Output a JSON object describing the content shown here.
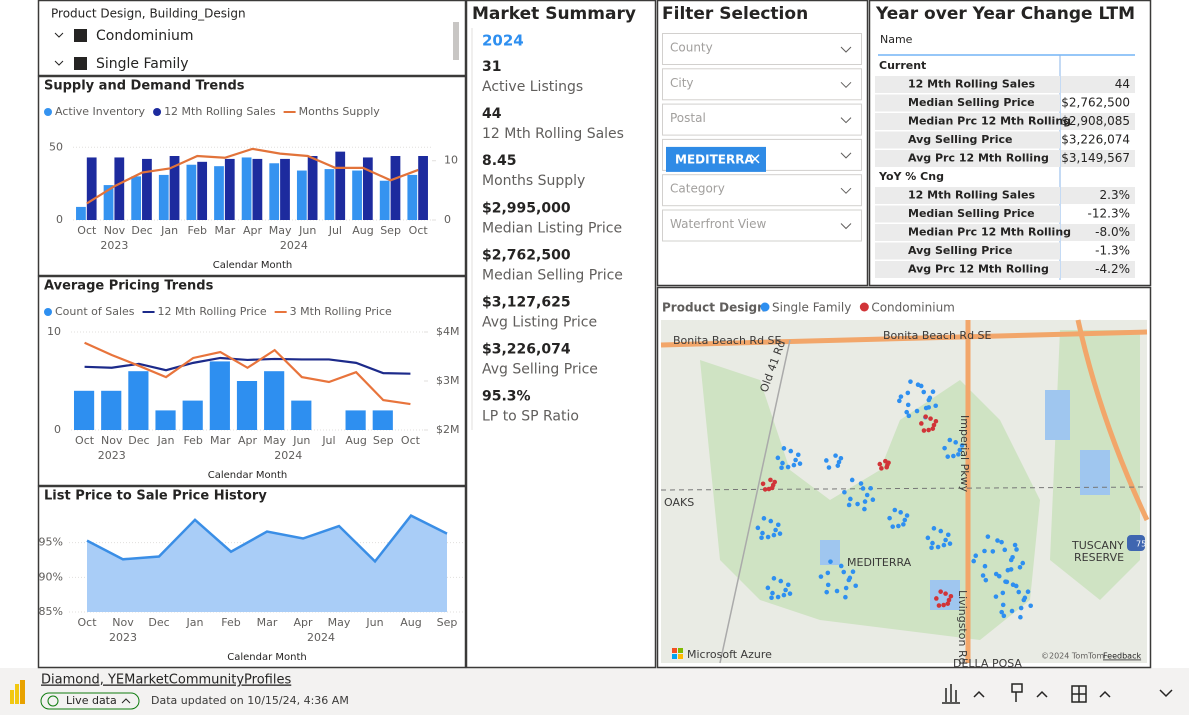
{
  "slicer": {
    "title": "Product Design, Building_Design",
    "items": [
      "Condominium",
      "Single Family"
    ]
  },
  "supply_chart": {
    "type": "combo",
    "title": "Supply and Demand Trends",
    "x_label": "Calendar Month",
    "year_labels": [
      "2023",
      "2024"
    ],
    "categories": [
      "Oct",
      "Nov",
      "Dec",
      "Jan",
      "Feb",
      "Mar",
      "Apr",
      "May",
      "Jun",
      "Jul",
      "Aug",
      "Sep",
      "Oct"
    ],
    "series": [
      {
        "name": "Active Inventory",
        "type": "bar",
        "color": "#3593f0",
        "values": [
          9,
          24,
          30,
          31,
          38,
          37,
          43,
          39,
          34,
          35,
          34,
          27,
          31
        ]
      },
      {
        "name": "12 Mth Rolling Sales",
        "type": "bar",
        "color": "#1d2b9e",
        "values": [
          43,
          43,
          42,
          44,
          40,
          42,
          42,
          42,
          44,
          47,
          43,
          44,
          44
        ]
      },
      {
        "name": "Months Supply",
        "type": "line",
        "axis": "y2",
        "color": "#e2733a",
        "values": [
          2.8,
          5.7,
          8,
          8.7,
          10.8,
          10.5,
          12,
          11.2,
          10.8,
          8.8,
          8.8,
          6.7,
          8.45
        ]
      }
    ],
    "ylim": [
      0,
      55
    ],
    "yticks": [
      0,
      50
    ],
    "y2lim": [
      0,
      13.5
    ],
    "y2ticks": [
      0,
      10
    ],
    "grid": true
  },
  "pricing_chart": {
    "type": "combo",
    "title": "Average Pricing Trends",
    "x_label": "Calendar Month",
    "year_labels": [
      "2023",
      "2024"
    ],
    "categories": [
      "Oct",
      "Nov",
      "Dec",
      "Jan",
      "Feb",
      "Mar",
      "Apr",
      "May",
      "Jun",
      "Jul",
      "Aug",
      "Sep",
      "Oct"
    ],
    "series": [
      {
        "name": "Count of Sales",
        "type": "bar",
        "color": "#2e8ff0",
        "values": [
          4,
          4,
          6,
          2,
          3,
          7,
          5,
          6,
          3,
          null,
          2,
          2,
          null
        ]
      },
      {
        "name": "12 Mth Rolling Price",
        "type": "line",
        "axis": "y2",
        "color": "#1c2a8a",
        "values": [
          3290000,
          3270000,
          3350000,
          3220000,
          3370000,
          3470000,
          3430000,
          3450000,
          3440000,
          3440000,
          3370000,
          3160000,
          3149567
        ]
      },
      {
        "name": "3 Mth Rolling Price",
        "type": "line",
        "axis": "y2",
        "color": "#e8743c",
        "values": [
          3780000,
          3530000,
          3310000,
          3080000,
          3470000,
          3590000,
          3270000,
          3630000,
          3080000,
          2980000,
          3180000,
          2610000,
          2530000
        ]
      }
    ],
    "ylim": [
      0,
      10
    ],
    "yticks": [
      0,
      10
    ],
    "y2lim": [
      2000000,
      4000000
    ],
    "y2ticks": [
      {
        "value": 2000000,
        "label": "$2M"
      },
      {
        "value": 3000000,
        "label": "$3M"
      },
      {
        "value": 4000000,
        "label": "$4M"
      }
    ],
    "grid": true
  },
  "lpsp_chart": {
    "type": "area",
    "title": "List Price to Sale Price History",
    "x_label": "Calendar Month",
    "year_labels": [
      "2023",
      "2024"
    ],
    "categories": [
      "Oct",
      "Nov",
      "Dec",
      "Jan",
      "Feb",
      "Mar",
      "Apr",
      "May",
      "Jun",
      "Aug",
      "Sep"
    ],
    "values": [
      95.3,
      92.6,
      93,
      98.3,
      93.7,
      96.6,
      95.6,
      97.4,
      92.3,
      98.9,
      96.3
    ],
    "color": "#3a8ee6",
    "fill": "#a9cdf7",
    "ylim": [
      85,
      100
    ],
    "yticks": [
      {
        "value": 85,
        "label": "85%"
      },
      {
        "value": 90,
        "label": "90%"
      },
      {
        "value": 95,
        "label": "95%"
      }
    ],
    "grid": true
  },
  "market_summary": {
    "title": "Market Summary",
    "year": "2024",
    "items": [
      {
        "value": "31",
        "label": "Active Listings"
      },
      {
        "value": "44",
        "label": "12 Mth Rolling Sales"
      },
      {
        "value": "8.45",
        "label": "Months Supply"
      },
      {
        "value": "$2,995,000",
        "label": "Median Listing Price"
      },
      {
        "value": "$2,762,500",
        "label": "Median Selling Price"
      },
      {
        "value": "$3,127,625",
        "label": "Avg Listing Price"
      },
      {
        "value": "$3,226,074",
        "label": "Avg Selling Price"
      },
      {
        "value": "95.3%",
        "label": "LP to SP Ratio"
      }
    ]
  },
  "filter_selection": {
    "title": "Filter Selection",
    "filters": [
      {
        "label": "County"
      },
      {
        "label": "City"
      },
      {
        "label": "Postal"
      },
      {
        "chip": "MEDITERRA"
      },
      {
        "label": "Category"
      },
      {
        "label": "Waterfront View"
      }
    ]
  },
  "yoy_table": {
    "title": "Year over Year Change LTM",
    "column": "Name",
    "sections": [
      {
        "name": "Current",
        "rows": [
          [
            "12 Mth Rolling Sales",
            "44"
          ],
          [
            "Median Selling Price",
            "$2,762,500"
          ],
          [
            "Median Prc 12 Mth Rolling",
            "$2,908,085"
          ],
          [
            "Avg Selling Price",
            "$3,226,074"
          ],
          [
            "Avg Prc 12 Mth Rolling",
            "$3,149,567"
          ]
        ]
      },
      {
        "name": "YoY % Cng",
        "rows": [
          [
            "12 Mth Rolling Sales",
            "2.3%"
          ],
          [
            "Median Selling Price",
            "-12.3%"
          ],
          [
            "Median Prc 12 Mth Rolling",
            "-8.0%"
          ],
          [
            "Avg Selling Price",
            "-1.3%"
          ],
          [
            "Avg Prc 12 Mth Rolling",
            "-4.2%"
          ]
        ]
      }
    ]
  },
  "map": {
    "title": "Product Design",
    "legend": [
      {
        "name": "Single Family",
        "color": "#2e8ff0"
      },
      {
        "name": "Condominium",
        "color": "#d13438"
      }
    ],
    "labels": [
      "Bonita Beach Rd SE",
      "Bonita Beach Rd SE",
      "Old 41 Rd",
      "Imperial Pkwy",
      "OAKS",
      "MEDITERRA",
      "Livingston Rd",
      "TUSCANY",
      "RESERVE",
      "75",
      "DELLA POSA"
    ],
    "brand": "Microsoft Azure",
    "copyright": "©2024 TomTom",
    "feedback": "Feedback"
  },
  "footer": {
    "report": "Diamond, YEMarketCommunityProfiles",
    "status": "Live data",
    "updated": "Data updated on 10/15/24, 4:36 AM"
  }
}
